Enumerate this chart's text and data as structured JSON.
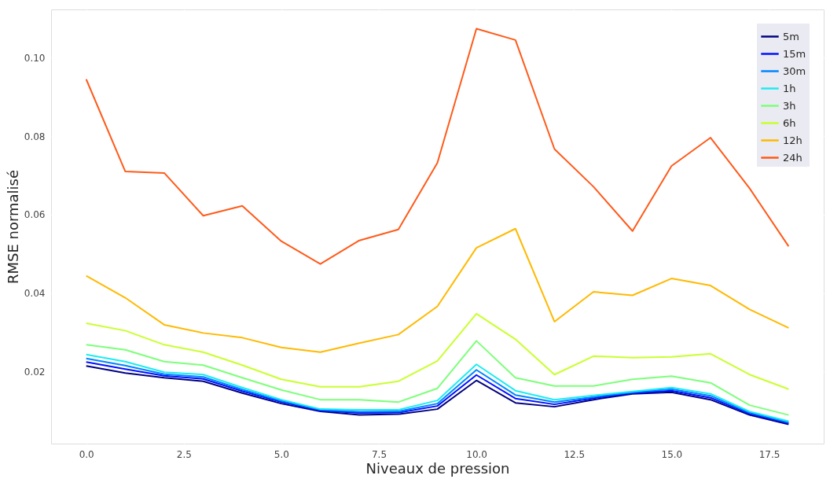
{
  "chart_data": {
    "type": "line",
    "xlabel": "Niveaux de pression",
    "ylabel": "RMSE normalisé",
    "x": [
      0,
      1,
      2,
      3,
      4,
      5,
      6,
      7,
      8,
      9,
      10,
      11,
      12,
      13,
      14,
      15,
      16,
      17,
      18
    ],
    "xlim": [
      -0.9,
      18.9
    ],
    "ylim": [
      0.0016,
      0.1123
    ],
    "xticks": [
      {
        "value": 0,
        "label": "0.0"
      },
      {
        "value": 2.5,
        "label": "2.5"
      },
      {
        "value": 5,
        "label": "5.0"
      },
      {
        "value": 7.5,
        "label": "7.5"
      },
      {
        "value": 10,
        "label": "10.0"
      },
      {
        "value": 12.5,
        "label": "12.5"
      },
      {
        "value": 15,
        "label": "15.0"
      },
      {
        "value": 17.5,
        "label": "17.5"
      }
    ],
    "yticks": [
      0.02,
      {
        "value": 0.04,
        "label": "0.04"
      },
      0.06,
      0.08,
      {
        "value": 0.1,
        "label": "0.10"
      }
    ],
    "grid": true,
    "legend": "top right",
    "line_style": "solid",
    "marker": "none",
    "series": [
      {
        "name": "5m",
        "color": "#00007f",
        "values": [
          0.0214,
          0.0196,
          0.0184,
          0.0175,
          0.0145,
          0.0118,
          0.0098,
          0.0089,
          0.0091,
          0.0104,
          0.0177,
          0.012,
          0.011,
          0.0128,
          0.0143,
          0.0147,
          0.0128,
          0.0089,
          0.0065
        ]
      },
      {
        "name": "15m",
        "color": "#0010ff",
        "values": [
          0.0224,
          0.0206,
          0.0189,
          0.0181,
          0.015,
          0.0122,
          0.01,
          0.0094,
          0.0095,
          0.0112,
          0.0191,
          0.0131,
          0.0116,
          0.0132,
          0.0145,
          0.0151,
          0.0133,
          0.0092,
          0.0068
        ]
      },
      {
        "name": "30m",
        "color": "#0084ff",
        "values": [
          0.0233,
          0.0215,
          0.0193,
          0.0186,
          0.0154,
          0.0125,
          0.0102,
          0.0097,
          0.0098,
          0.0118,
          0.0204,
          0.014,
          0.0122,
          0.0135,
          0.0147,
          0.0155,
          0.0138,
          0.0095,
          0.007
        ]
      },
      {
        "name": "1h",
        "color": "#1cecf0",
        "values": [
          0.0243,
          0.0225,
          0.0198,
          0.0192,
          0.0159,
          0.0128,
          0.0104,
          0.0102,
          0.0102,
          0.0126,
          0.0218,
          0.0151,
          0.0128,
          0.0139,
          0.0149,
          0.0159,
          0.0143,
          0.0098,
          0.0073
        ]
      },
      {
        "name": "3h",
        "color": "#7dff7a",
        "values": [
          0.0268,
          0.0255,
          0.0225,
          0.0216,
          0.0184,
          0.0153,
          0.0128,
          0.0128,
          0.0122,
          0.0157,
          0.0278,
          0.0184,
          0.0163,
          0.0163,
          0.018,
          0.0188,
          0.0171,
          0.0114,
          0.0089
        ]
      },
      {
        "name": "6h",
        "color": "#c9ff2f",
        "values": [
          0.0323,
          0.0304,
          0.0268,
          0.0249,
          0.0216,
          0.018,
          0.0161,
          0.0161,
          0.0175,
          0.0227,
          0.0347,
          0.0282,
          0.0192,
          0.0239,
          0.0235,
          0.0237,
          0.0245,
          0.0192,
          0.0155
        ]
      },
      {
        "name": "12h",
        "color": "#ffb900",
        "values": [
          0.0444,
          0.0388,
          0.0319,
          0.0298,
          0.0286,
          0.0261,
          0.0249,
          0.0272,
          0.0294,
          0.0366,
          0.0515,
          0.0564,
          0.0327,
          0.0403,
          0.0394,
          0.0437,
          0.0419,
          0.0358,
          0.0311
        ]
      },
      {
        "name": "24h",
        "color": "#ff5a1a",
        "values": [
          0.0945,
          0.071,
          0.0706,
          0.0597,
          0.0622,
          0.0532,
          0.0474,
          0.0534,
          0.0562,
          0.0732,
          0.1074,
          0.1045,
          0.0767,
          0.0671,
          0.0558,
          0.0724,
          0.0796,
          0.0667,
          0.0519
        ]
      }
    ]
  }
}
